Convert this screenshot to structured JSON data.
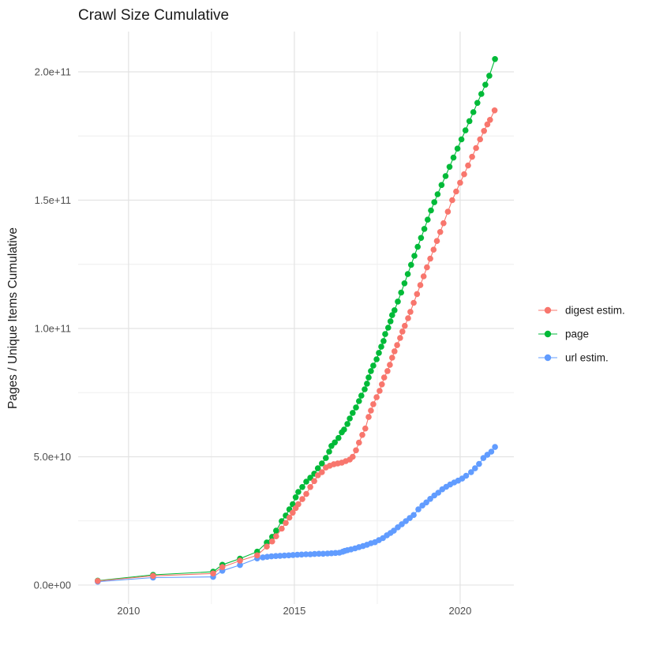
{
  "chart_data": {
    "type": "scatter",
    "title": "Crawl Size Cumulative",
    "xlabel": "",
    "ylabel": "Pages / Unique Items Cumulative",
    "background": "#ffffff",
    "grid": true,
    "gridline_major_color": "#e3e3e3",
    "gridline_minor_color": "#eeeeee",
    "tick_label_color": "#4d4d4d",
    "title_color": "#1a1a1a",
    "xlim": [
      2008.48,
      2021.62
    ],
    "ylim": [
      -7400000000.0,
      215700000000.0
    ],
    "x_ticks": [
      {
        "value": 2010,
        "label": "2010"
      },
      {
        "value": 2015,
        "label": "2015"
      },
      {
        "value": 2020,
        "label": "2020"
      }
    ],
    "x_minor": [
      2012.5,
      2017.5
    ],
    "y_ticks": [
      {
        "value": 0,
        "label": "0.0e+00"
      },
      {
        "value": 50000000000.0,
        "label": "5.0e+10"
      },
      {
        "value": 100000000000.0,
        "label": "1.0e+11"
      },
      {
        "value": 150000000000.0,
        "label": "1.5e+11"
      },
      {
        "value": 200000000000.0,
        "label": "2.0e+11"
      }
    ],
    "y_minor": [
      25000000000.0,
      75000000000.0,
      125000000000.0,
      175000000000.0
    ],
    "legend": {
      "position": "right",
      "entries": [
        {
          "name": "digest estim.",
          "color": "#F8766D"
        },
        {
          "name": "page",
          "color": "#00BA38"
        },
        {
          "name": "url estim.",
          "color": "#619CFF"
        }
      ]
    },
    "draw_order": [
      "page",
      "url estim.",
      "digest estim."
    ],
    "series": [
      {
        "name": "digest estim.",
        "color": "#F8766D",
        "points": [
          [
            2009.07,
            1600000000.0
          ],
          [
            2010.74,
            3600000000.0
          ],
          [
            2012.55,
            4500000000.0
          ],
          [
            2012.83,
            7000000000.0
          ],
          [
            2013.36,
            9500000000.0
          ],
          [
            2013.88,
            11600000000.0
          ],
          [
            2014.17,
            15000000000.0
          ],
          [
            2014.33,
            17000000000.0
          ],
          [
            2014.45,
            19000000000.0
          ],
          [
            2014.62,
            22000000000.0
          ],
          [
            2014.74,
            24200000000.0
          ],
          [
            2014.85,
            26300000000.0
          ],
          [
            2014.95,
            28200000000.0
          ],
          [
            2015.04,
            30000000000.0
          ],
          [
            2015.12,
            31500000000.0
          ],
          [
            2015.24,
            33500000000.0
          ],
          [
            2015.36,
            35500000000.0
          ],
          [
            2015.48,
            38200000000.0
          ],
          [
            2015.6,
            40500000000.0
          ],
          [
            2015.71,
            42800000000.0
          ],
          [
            2015.83,
            44000000000.0
          ],
          [
            2015.95,
            45800000000.0
          ],
          [
            2016.07,
            46500000000.0
          ],
          [
            2016.19,
            47100000000.0
          ],
          [
            2016.31,
            47400000000.0
          ],
          [
            2016.43,
            47700000000.0
          ],
          [
            2016.55,
            48300000000.0
          ],
          [
            2016.67,
            48900000000.0
          ],
          [
            2016.76,
            50000000000.0
          ],
          [
            2016.86,
            52500000000.0
          ],
          [
            2016.95,
            55500000000.0
          ],
          [
            2017.05,
            58500000000.0
          ],
          [
            2017.14,
            61000000000.0
          ],
          [
            2017.24,
            65500000000.0
          ],
          [
            2017.31,
            68000000000.0
          ],
          [
            2017.38,
            70500000000.0
          ],
          [
            2017.48,
            73200000000.0
          ],
          [
            2017.57,
            75700000000.0
          ],
          [
            2017.64,
            78200000000.0
          ],
          [
            2017.71,
            80900000000.0
          ],
          [
            2017.81,
            83400000000.0
          ],
          [
            2017.88,
            85800000000.0
          ],
          [
            2017.95,
            88600000000.0
          ],
          [
            2018.02,
            91100000000.0
          ],
          [
            2018.1,
            93500000000.0
          ],
          [
            2018.19,
            96300000000.0
          ],
          [
            2018.26,
            98800000000.0
          ],
          [
            2018.33,
            101000000000.0
          ],
          [
            2018.43,
            104000000000.0
          ],
          [
            2018.5,
            106500000000.0
          ],
          [
            2018.6,
            110000000000.0
          ],
          [
            2018.7,
            113400000000.0
          ],
          [
            2018.8,
            116900000000.0
          ],
          [
            2018.9,
            120300000000.0
          ],
          [
            2019.0,
            123800000000.0
          ],
          [
            2019.1,
            127200000000.0
          ],
          [
            2019.2,
            130700000000.0
          ],
          [
            2019.3,
            134100000000.0
          ],
          [
            2019.4,
            137600000000.0
          ],
          [
            2019.5,
            141000000000.0
          ],
          [
            2019.63,
            145500000000.0
          ],
          [
            2019.76,
            150000000000.0
          ],
          [
            2019.88,
            153400000000.0
          ],
          [
            2020.0,
            156800000000.0
          ],
          [
            2020.12,
            160100000000.0
          ],
          [
            2020.24,
            163500000000.0
          ],
          [
            2020.36,
            166900000000.0
          ],
          [
            2020.48,
            170300000000.0
          ],
          [
            2020.6,
            173700000000.0
          ],
          [
            2020.72,
            177000000000.0
          ],
          [
            2020.82,
            179500000000.0
          ],
          [
            2020.9,
            181300000000.0
          ],
          [
            2021.04,
            185000000000.0
          ]
        ]
      },
      {
        "name": "page",
        "color": "#00BA38",
        "points": [
          [
            2009.07,
            1700000000.0
          ],
          [
            2010.74,
            4000000000.0
          ],
          [
            2012.55,
            5200000000.0
          ],
          [
            2012.83,
            7900000000.0
          ],
          [
            2013.36,
            10300000000.0
          ],
          [
            2013.88,
            13000000000.0
          ],
          [
            2014.17,
            16600000000.0
          ],
          [
            2014.33,
            18800000000.0
          ],
          [
            2014.45,
            21200000000.0
          ],
          [
            2014.62,
            24900000000.0
          ],
          [
            2014.74,
            27100000000.0
          ],
          [
            2014.85,
            29500000000.0
          ],
          [
            2014.95,
            31500000000.0
          ],
          [
            2015.04,
            34200000000.0
          ],
          [
            2015.12,
            36300000000.0
          ],
          [
            2015.24,
            38200000000.0
          ],
          [
            2015.36,
            40300000000.0
          ],
          [
            2015.48,
            41800000000.0
          ],
          [
            2015.6,
            43400000000.0
          ],
          [
            2015.71,
            45500000000.0
          ],
          [
            2015.83,
            47400000000.0
          ],
          [
            2015.95,
            49500000000.0
          ],
          [
            2016.05,
            52000000000.0
          ],
          [
            2016.12,
            54200000000.0
          ],
          [
            2016.22,
            55600000000.0
          ],
          [
            2016.33,
            57300000000.0
          ],
          [
            2016.43,
            59500000000.0
          ],
          [
            2016.5,
            60600000000.0
          ],
          [
            2016.6,
            62800000000.0
          ],
          [
            2016.67,
            64900000000.0
          ],
          [
            2016.76,
            67100000000.0
          ],
          [
            2016.86,
            69200000000.0
          ],
          [
            2016.95,
            71700000000.0
          ],
          [
            2017.02,
            73800000000.0
          ],
          [
            2017.12,
            76300000000.0
          ],
          [
            2017.19,
            78500000000.0
          ],
          [
            2017.24,
            80900000000.0
          ],
          [
            2017.31,
            83400000000.0
          ],
          [
            2017.38,
            85500000000.0
          ],
          [
            2017.48,
            88000000000.0
          ],
          [
            2017.55,
            90500000000.0
          ],
          [
            2017.62,
            92900000000.0
          ],
          [
            2017.69,
            95100000000.0
          ],
          [
            2017.74,
            97800000000.0
          ],
          [
            2017.83,
            100300000000.0
          ],
          [
            2017.9,
            102800000000.0
          ],
          [
            2017.95,
            105200000000.0
          ],
          [
            2018.02,
            107100000000.0
          ],
          [
            2018.12,
            110500000000.0
          ],
          [
            2018.22,
            114000000000.0
          ],
          [
            2018.32,
            117600000000.0
          ],
          [
            2018.42,
            121200000000.0
          ],
          [
            2018.52,
            124800000000.0
          ],
          [
            2018.62,
            128300000000.0
          ],
          [
            2018.72,
            131800000000.0
          ],
          [
            2018.82,
            135300000000.0
          ],
          [
            2018.92,
            138800000000.0
          ],
          [
            2019.02,
            142400000000.0
          ],
          [
            2019.12,
            146000000000.0
          ],
          [
            2019.22,
            149200000000.0
          ],
          [
            2019.32,
            152300000000.0
          ],
          [
            2019.44,
            155900000000.0
          ],
          [
            2019.56,
            159400000000.0
          ],
          [
            2019.68,
            163000000000.0
          ],
          [
            2019.8,
            166600000000.0
          ],
          [
            2019.92,
            170100000000.0
          ],
          [
            2020.04,
            173700000000.0
          ],
          [
            2020.16,
            177200000000.0
          ],
          [
            2020.28,
            180800000000.0
          ],
          [
            2020.4,
            184300000000.0
          ],
          [
            2020.52,
            187900000000.0
          ],
          [
            2020.64,
            191400000000.0
          ],
          [
            2020.76,
            195000000000.0
          ],
          [
            2020.88,
            198500000000.0
          ],
          [
            2021.05,
            205000000000.0
          ]
        ]
      },
      {
        "name": "url estim.",
        "color": "#619CFF",
        "points": [
          [
            2009.07,
            1300000000.0
          ],
          [
            2010.74,
            2900000000.0
          ],
          [
            2012.55,
            3200000000.0
          ],
          [
            2012.83,
            5600000000.0
          ],
          [
            2013.36,
            7800000000.0
          ],
          [
            2013.88,
            10400000000.0
          ],
          [
            2014.05,
            10800000000.0
          ],
          [
            2014.18,
            11000000000.0
          ],
          [
            2014.31,
            11200000000.0
          ],
          [
            2014.44,
            11300000000.0
          ],
          [
            2014.57,
            11400000000.0
          ],
          [
            2014.7,
            11500000000.0
          ],
          [
            2014.83,
            11600000000.0
          ],
          [
            2014.96,
            11700000000.0
          ],
          [
            2015.09,
            11800000000.0
          ],
          [
            2015.22,
            11900000000.0
          ],
          [
            2015.35,
            12000000000.0
          ],
          [
            2015.48,
            12000000000.0
          ],
          [
            2015.61,
            12100000000.0
          ],
          [
            2015.74,
            12200000000.0
          ],
          [
            2015.87,
            12200000000.0
          ],
          [
            2016.0,
            12300000000.0
          ],
          [
            2016.12,
            12400000000.0
          ],
          [
            2016.24,
            12500000000.0
          ],
          [
            2016.36,
            12600000000.0
          ],
          [
            2016.46,
            13000000000.0
          ],
          [
            2016.52,
            13300000000.0
          ],
          [
            2016.6,
            13600000000.0
          ],
          [
            2016.71,
            13900000000.0
          ],
          [
            2016.83,
            14300000000.0
          ],
          [
            2016.95,
            14800000000.0
          ],
          [
            2017.07,
            15200000000.0
          ],
          [
            2017.19,
            15700000000.0
          ],
          [
            2017.31,
            16300000000.0
          ],
          [
            2017.43,
            16700000000.0
          ],
          [
            2017.55,
            17500000000.0
          ],
          [
            2017.67,
            18300000000.0
          ],
          [
            2017.79,
            19400000000.0
          ],
          [
            2017.9,
            20300000000.0
          ],
          [
            2018.0,
            21200000000.0
          ],
          [
            2018.12,
            22500000000.0
          ],
          [
            2018.24,
            23700000000.0
          ],
          [
            2018.36,
            24900000000.0
          ],
          [
            2018.48,
            26100000000.0
          ],
          [
            2018.6,
            27300000000.0
          ],
          [
            2018.74,
            29500000000.0
          ],
          [
            2018.86,
            31000000000.0
          ],
          [
            2018.98,
            32200000000.0
          ],
          [
            2019.1,
            33600000000.0
          ],
          [
            2019.22,
            34900000000.0
          ],
          [
            2019.34,
            36000000000.0
          ],
          [
            2019.46,
            37300000000.0
          ],
          [
            2019.58,
            38300000000.0
          ],
          [
            2019.7,
            39200000000.0
          ],
          [
            2019.82,
            40000000000.0
          ],
          [
            2019.94,
            40700000000.0
          ],
          [
            2020.06,
            41500000000.0
          ],
          [
            2020.18,
            42600000000.0
          ],
          [
            2020.33,
            44000000000.0
          ],
          [
            2020.45,
            45500000000.0
          ],
          [
            2020.57,
            47200000000.0
          ],
          [
            2020.7,
            49500000000.0
          ],
          [
            2020.82,
            50800000000.0
          ],
          [
            2020.94,
            52000000000.0
          ],
          [
            2021.05,
            53800000000.0
          ]
        ]
      }
    ]
  }
}
